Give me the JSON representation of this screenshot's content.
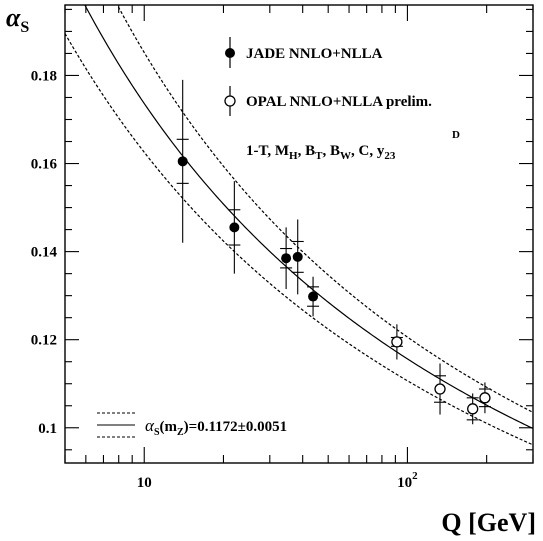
{
  "chart_data": {
    "type": "scatter",
    "x_scale": "log",
    "xlim": [
      5,
      300
    ],
    "ylim": [
      0.092,
      0.196
    ],
    "ylabel_main": "α",
    "ylabel_sub": "S",
    "xlabel": "Q [GeV]",
    "y_ticks": [
      {
        "value": 0.1,
        "label": "0.1"
      },
      {
        "value": 0.12,
        "label": "0.12"
      },
      {
        "value": 0.14,
        "label": "0.14"
      },
      {
        "value": 0.16,
        "label": "0.16"
      },
      {
        "value": 0.18,
        "label": "0.18"
      }
    ],
    "x_ticks": [
      {
        "value": 10,
        "base": "10",
        "exp": ""
      },
      {
        "value": 100,
        "base": "10",
        "exp": "2"
      }
    ],
    "series": [
      {
        "name": "JADE NNLO+NLLA",
        "marker": "filled-circle",
        "points": [
          {
            "x": 14,
            "y": 0.1605,
            "stat": 0.005,
            "tot": 0.0185
          },
          {
            "x": 22,
            "y": 0.1455,
            "stat": 0.004,
            "tot": 0.0105
          },
          {
            "x": 34.6,
            "y": 0.1385,
            "stat": 0.0022,
            "tot": 0.007
          },
          {
            "x": 38.3,
            "y": 0.1388,
            "stat": 0.0035,
            "tot": 0.0085
          },
          {
            "x": 43.8,
            "y": 0.1298,
            "stat": 0.0022,
            "tot": 0.0045
          }
        ]
      },
      {
        "name": "OPAL NNLO+NLLA prelim.",
        "marker": "open-circle",
        "points": [
          {
            "x": 91.2,
            "y": 0.1195,
            "stat": 0.001,
            "tot": 0.004
          },
          {
            "x": 133,
            "y": 0.1088,
            "stat": 0.003,
            "tot": 0.0058
          },
          {
            "x": 177,
            "y": 0.1043,
            "stat": 0.0025,
            "tot": 0.0035
          },
          {
            "x": 197,
            "y": 0.1068,
            "stat": 0.002,
            "tot": 0.0035
          }
        ]
      }
    ],
    "observables_label": {
      "parts": [
        {
          "t": "1-T, M"
        },
        {
          "t": "H",
          "sub": true
        },
        {
          "t": ", B"
        },
        {
          "t": "T",
          "sub": true
        },
        {
          "t": ", B"
        },
        {
          "t": "W",
          "sub": true
        },
        {
          "t": ", C, y"
        },
        {
          "t": "23",
          "sub": true
        }
      ],
      "sup": "D"
    },
    "fit": {
      "label_main": "α",
      "label_sub": "S",
      "label_rest": "(m",
      "label_rest_sub": "Z",
      "label_value": ")=0.1172±0.0051",
      "alpha_mz": 0.1172,
      "error": 0.0051,
      "mz": 91.19
    }
  }
}
